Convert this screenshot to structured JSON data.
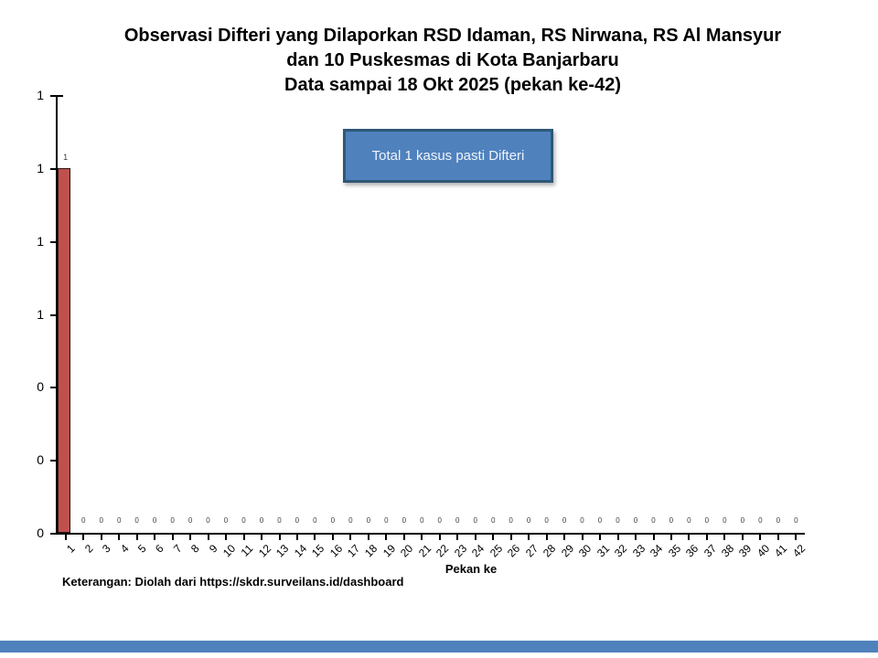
{
  "chart_data": {
    "type": "bar",
    "title_lines": [
      "Observasi Difteri yang Dilaporkan RSD Idaman, RS Nirwana, RS Al Mansyur",
      "dan 10 Puskesmas di Kota Banjarbaru",
      "Data sampai 18 Okt 2025 (pekan ke-42)"
    ],
    "xlabel": "Pekan ke",
    "ylabel": "",
    "categories": [
      "1",
      "2",
      "3",
      "4",
      "5",
      "6",
      "7",
      "8",
      "9",
      "10",
      "11",
      "12",
      "13",
      "14",
      "15",
      "16",
      "17",
      "18",
      "19",
      "20",
      "21",
      "22",
      "23",
      "24",
      "25",
      "26",
      "27",
      "28",
      "29",
      "30",
      "31",
      "32",
      "33",
      "34",
      "35",
      "36",
      "37",
      "38",
      "39",
      "40",
      "41",
      "42"
    ],
    "values": [
      1,
      0,
      0,
      0,
      0,
      0,
      0,
      0,
      0,
      0,
      0,
      0,
      0,
      0,
      0,
      0,
      0,
      0,
      0,
      0,
      0,
      0,
      0,
      0,
      0,
      0,
      0,
      0,
      0,
      0,
      0,
      0,
      0,
      0,
      0,
      0,
      0,
      0,
      0,
      0,
      0,
      0
    ],
    "ylim": [
      0,
      1.2
    ],
    "y_tick_step": 0.2,
    "y_tick_labels_top_to_bottom": [
      "1",
      "1",
      "1",
      "1",
      "0",
      "0",
      "0"
    ],
    "grid": false,
    "legend": "none",
    "data_labels": true,
    "bar_color": "#c0504d",
    "bar_border_color": "#2a1413",
    "data_label_color": "#404040",
    "annotation_box": {
      "text": "Total 1 kasus pasti Difteri",
      "fill": "#4f81bd",
      "border": "#2e5878",
      "text_color": "#eef4fb"
    }
  },
  "footer": {
    "note": "Keterangan: Diolah dari https://skdr.surveilans.id/dashboard"
  },
  "accent_bar_color": "#4f81bd"
}
